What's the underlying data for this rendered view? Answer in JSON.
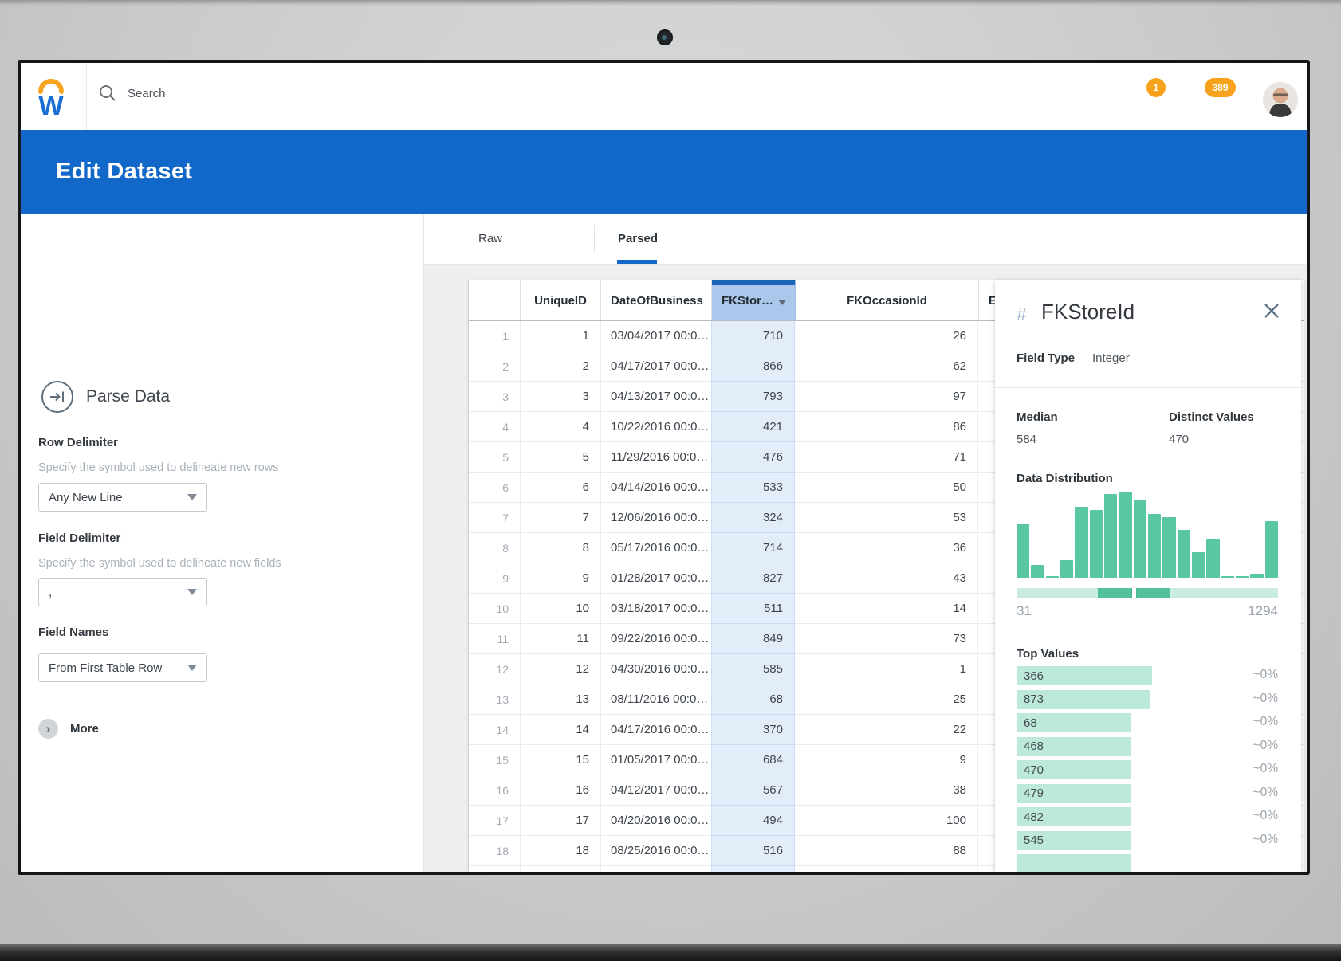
{
  "colors": {
    "accent_blue": "#1168c9",
    "col_header_bg": "#abc8ec",
    "col_header_strip": "#1a65b8",
    "col_cell_bg": "#e3edfa",
    "hist_green": "#58c7a2",
    "top_value_mint": "#bce9d9",
    "slider_track": "#c9ecdf",
    "slider_range": "#53c19b",
    "badge_orange": "#f6a21d"
  },
  "topbar": {
    "search_placeholder": "Search",
    "badges": [
      {
        "count": "1"
      },
      {
        "count": "389"
      }
    ]
  },
  "page_header": {
    "title": "Edit Dataset"
  },
  "parse_panel": {
    "title": "Parse Data",
    "row_delimiter": {
      "label": "Row Delimiter",
      "helper": "Specify the symbol used to delineate new rows",
      "value": "Any New Line"
    },
    "field_delimiter": {
      "label": "Field Delimiter",
      "helper": "Specify the symbol used to delineate new fields",
      "value": ","
    },
    "field_names": {
      "label": "Field Names",
      "value": "From First Table Row"
    },
    "more_label": "More"
  },
  "tabs": {
    "raw": "Raw",
    "parsed": "Parsed"
  },
  "table": {
    "columns": {
      "unique_id": "UniqueID",
      "date_of_business": "DateOfBusiness",
      "fk_store": "FKStor…",
      "fk_occasion": "FKOccasionId",
      "extra": "E"
    },
    "rows": [
      {
        "n": "1",
        "id": "1",
        "date": "03/04/2017 00:0…",
        "store": "710",
        "occ": "26"
      },
      {
        "n": "2",
        "id": "2",
        "date": "04/17/2017 00:0…",
        "store": "866",
        "occ": "62"
      },
      {
        "n": "3",
        "id": "3",
        "date": "04/13/2017 00:0…",
        "store": "793",
        "occ": "97"
      },
      {
        "n": "4",
        "id": "4",
        "date": "10/22/2016 00:0…",
        "store": "421",
        "occ": "86"
      },
      {
        "n": "5",
        "id": "5",
        "date": "11/29/2016 00:0…",
        "store": "476",
        "occ": "71"
      },
      {
        "n": "6",
        "id": "6",
        "date": "04/14/2016 00:0…",
        "store": "533",
        "occ": "50"
      },
      {
        "n": "7",
        "id": "7",
        "date": "12/06/2016 00:0…",
        "store": "324",
        "occ": "53"
      },
      {
        "n": "8",
        "id": "8",
        "date": "05/17/2016 00:0…",
        "store": "714",
        "occ": "36"
      },
      {
        "n": "9",
        "id": "9",
        "date": "01/28/2017 00:0…",
        "store": "827",
        "occ": "43"
      },
      {
        "n": "10",
        "id": "10",
        "date": "03/18/2017 00:0…",
        "store": "511",
        "occ": "14"
      },
      {
        "n": "11",
        "id": "11",
        "date": "09/22/2016 00:0…",
        "store": "849",
        "occ": "73"
      },
      {
        "n": "12",
        "id": "12",
        "date": "04/30/2016 00:0…",
        "store": "585",
        "occ": "1"
      },
      {
        "n": "13",
        "id": "13",
        "date": "08/11/2016 00:0…",
        "store": "68",
        "occ": "25"
      },
      {
        "n": "14",
        "id": "14",
        "date": "04/17/2016 00:0…",
        "store": "370",
        "occ": "22"
      },
      {
        "n": "15",
        "id": "15",
        "date": "01/05/2017 00:0…",
        "store": "684",
        "occ": "9"
      },
      {
        "n": "16",
        "id": "16",
        "date": "04/12/2017 00:0…",
        "store": "567",
        "occ": "38"
      },
      {
        "n": "17",
        "id": "17",
        "date": "04/20/2016 00:0…",
        "store": "494",
        "occ": "100"
      },
      {
        "n": "18",
        "id": "18",
        "date": "08/25/2016 00:0…",
        "store": "516",
        "occ": "88"
      }
    ]
  },
  "field_panel": {
    "type_symbol": "#",
    "title": "FKStoreId",
    "field_type_label": "Field Type",
    "field_type_value": "Integer",
    "stats": {
      "median_label": "Median",
      "median_value": "584",
      "distinct_label": "Distinct Values",
      "distinct_value": "470"
    },
    "distribution": {
      "title": "Data Distribution",
      "min_label": "31",
      "max_label": "1294",
      "bar_heights_pct": [
        63,
        15,
        1,
        20,
        82,
        79,
        97,
        100,
        90,
        74,
        70,
        56,
        30,
        44,
        2,
        2,
        5,
        66
      ]
    },
    "top_values": {
      "title": "Top Values",
      "rows": [
        {
          "value": "366",
          "pct": "~0%",
          "bar_pct": 100
        },
        {
          "value": "873",
          "pct": "~0%",
          "bar_pct": 99
        },
        {
          "value": "68",
          "pct": "~0%",
          "bar_pct": 84
        },
        {
          "value": "468",
          "pct": "~0%",
          "bar_pct": 84
        },
        {
          "value": "470",
          "pct": "~0%",
          "bar_pct": 84
        },
        {
          "value": "479",
          "pct": "~0%",
          "bar_pct": 84
        },
        {
          "value": "482",
          "pct": "~0%",
          "bar_pct": 84
        },
        {
          "value": "545",
          "pct": "~0%",
          "bar_pct": 84
        },
        {
          "value": "",
          "pct": "",
          "bar_pct": 84
        }
      ]
    }
  }
}
